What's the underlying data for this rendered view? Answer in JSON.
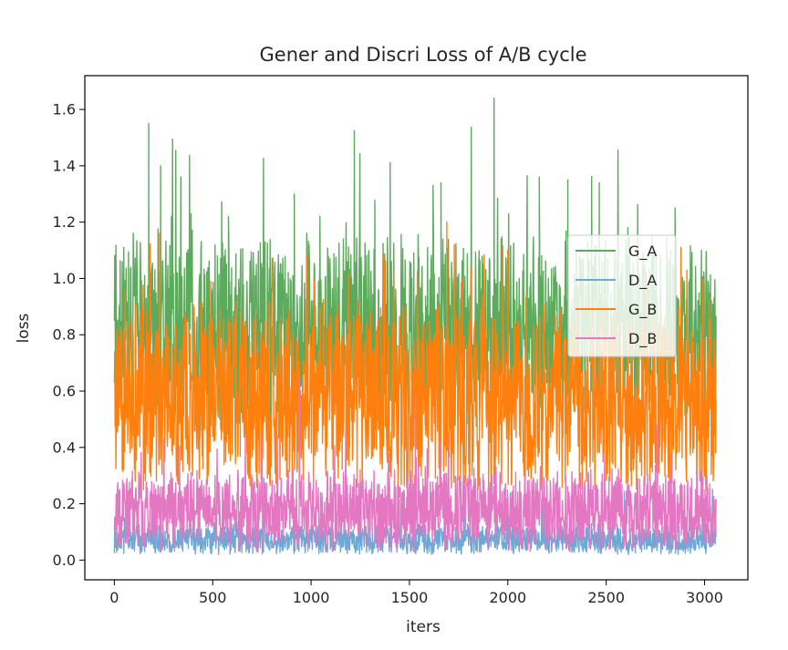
{
  "chart_data": {
    "type": "line",
    "title": "Gener and Discri Loss of A/B cycle",
    "xlabel": "iters",
    "ylabel": "loss",
    "xlim": [
      -150,
      3220
    ],
    "ylim": [
      -0.07,
      1.72
    ],
    "xticks": [
      0,
      500,
      1000,
      1500,
      2000,
      2500,
      3000
    ],
    "yticks": [
      0.0,
      0.2,
      0.4,
      0.6,
      0.8,
      1.0,
      1.2,
      1.4,
      1.6
    ],
    "grid": false,
    "legend_position": "center-right",
    "n_points": 3060,
    "series": [
      {
        "name": "G_A",
        "color": "#5cab5c",
        "approx_min": 0.45,
        "approx_max": 1.64,
        "approx_typical_range": [
          0.55,
          1.1
        ],
        "peaks": [
          {
            "x": 175,
            "y": 1.55
          },
          {
            "x": 235,
            "y": 1.4
          },
          {
            "x": 290,
            "y": 1.22
          },
          {
            "x": 390,
            "y": 1.23
          },
          {
            "x": 580,
            "y": 1.22
          },
          {
            "x": 915,
            "y": 1.3
          },
          {
            "x": 1045,
            "y": 1.22
          },
          {
            "x": 1620,
            "y": 1.33
          },
          {
            "x": 1660,
            "y": 1.34
          },
          {
            "x": 1930,
            "y": 1.64
          },
          {
            "x": 2160,
            "y": 1.36
          },
          {
            "x": 2305,
            "y": 1.35
          },
          {
            "x": 2465,
            "y": 1.34
          },
          {
            "x": 2850,
            "y": 1.25
          }
        ]
      },
      {
        "name": "D_A",
        "color": "#6ea8d4",
        "approx_min": 0.02,
        "approx_max": 0.28,
        "approx_typical_range": [
          0.03,
          0.12
        ]
      },
      {
        "name": "G_B",
        "color": "#ff7f0e",
        "approx_min": 0.25,
        "approx_max": 1.18,
        "approx_typical_range": [
          0.3,
          0.85
        ],
        "peaks": [
          {
            "x": 230,
            "y": 1.16
          },
          {
            "x": 1690,
            "y": 1.2
          },
          {
            "x": 2000,
            "y": 1.1
          },
          {
            "x": 55,
            "y": 0.96
          }
        ]
      },
      {
        "name": "D_B",
        "color": "#e377c2",
        "approx_min": 0.03,
        "approx_max": 0.65,
        "approx_typical_range": [
          0.06,
          0.3
        ],
        "peaks": [
          {
            "x": 940,
            "y": 0.65
          },
          {
            "x": 1530,
            "y": 0.58
          }
        ]
      }
    ]
  }
}
